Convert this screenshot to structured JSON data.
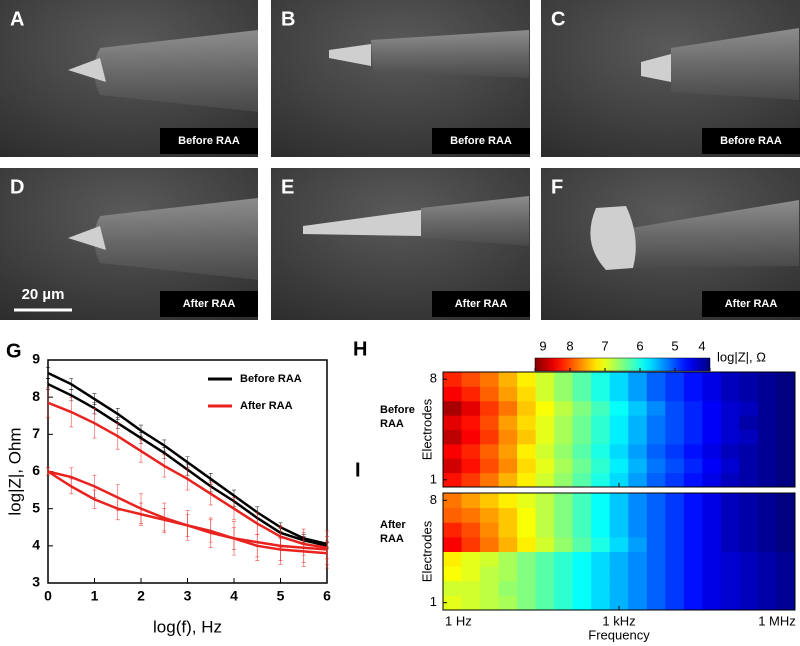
{
  "images": [
    {
      "label": "A",
      "caption": "Before RAA"
    },
    {
      "label": "B",
      "caption": "Before RAA"
    },
    {
      "label": "C",
      "caption": "Before RAA"
    },
    {
      "label": "D",
      "caption": "After RAA"
    },
    {
      "label": "E",
      "caption": "After RAA"
    },
    {
      "label": "F",
      "caption": "After RAA"
    }
  ],
  "scale_bar": "20 µm",
  "chart_data": [
    {
      "type": "line",
      "label": "G",
      "xlabel": "log(f), Hz",
      "ylabel": "log|Z|, Ohm",
      "xlim": [
        0,
        6
      ],
      "ylim": [
        3,
        9
      ],
      "xticks": [
        0,
        1,
        2,
        3,
        4,
        5,
        6
      ],
      "yticks": [
        3,
        4,
        5,
        6,
        7,
        8,
        9
      ],
      "x": [
        0,
        0.5,
        1,
        1.5,
        2,
        2.5,
        3,
        3.5,
        4,
        4.5,
        5,
        5.5,
        6
      ],
      "series": [
        {
          "name": "Before RAA",
          "color": "#000000",
          "curves": [
            {
              "values": [
                8.65,
                8.35,
                7.95,
                7.55,
                7.1,
                6.7,
                6.25,
                5.8,
                5.35,
                4.9,
                4.5,
                4.2,
                4.05
              ],
              "errors": [
                0.15,
                0.15,
                0.15,
                0.15,
                0.15,
                0.15,
                0.15,
                0.15,
                0.15,
                0.15,
                0.12,
                0.1,
                0.08
              ]
            },
            {
              "values": [
                8.35,
                8.05,
                7.7,
                7.3,
                6.9,
                6.5,
                6.05,
                5.6,
                5.2,
                4.75,
                4.35,
                4.15,
                4.0
              ],
              "errors": [
                0.15,
                0.15,
                0.15,
                0.15,
                0.15,
                0.15,
                0.15,
                0.15,
                0.15,
                0.15,
                0.12,
                0.1,
                0.08
              ]
            }
          ]
        },
        {
          "name": "After RAA",
          "color": "#e8231f",
          "curves": [
            {
              "values": [
                7.85,
                7.6,
                7.3,
                6.95,
                6.55,
                6.15,
                5.8,
                5.4,
                5.0,
                4.6,
                4.25,
                4.05,
                3.95
              ],
              "errors": [
                0.4,
                0.4,
                0.4,
                0.35,
                0.3,
                0.3,
                0.3,
                0.3,
                0.3,
                0.3,
                0.3,
                0.3,
                0.3
              ]
            },
            {
              "values": [
                6.0,
                5.85,
                5.6,
                5.3,
                5.0,
                4.75,
                4.55,
                4.35,
                4.2,
                4.1,
                4.0,
                3.95,
                3.9
              ],
              "errors": [
                0.1,
                0.25,
                0.3,
                0.35,
                0.4,
                0.4,
                0.4,
                0.4,
                0.45,
                0.5,
                0.5,
                0.5,
                0.5
              ]
            },
            {
              "values": [
                6.0,
                5.6,
                5.25,
                5.0,
                4.85,
                4.7,
                4.55,
                4.4,
                4.2,
                4.0,
                3.9,
                3.85,
                3.8
              ],
              "errors": [
                0.1,
                0.2,
                0.25,
                0.3,
                0.3,
                0.3,
                0.3,
                0.3,
                0.3,
                0.3,
                0.3,
                0.3,
                0.3
              ]
            }
          ]
        }
      ]
    },
    {
      "type": "heatmap",
      "label": "H",
      "side_label": "Before\nRAA",
      "ylabel": "Electrodes",
      "xlabel": "",
      "colorbar": {
        "clim": [
          4,
          9
        ],
        "ticks": [
          9,
          8,
          7,
          6,
          5,
          4
        ],
        "label": "log|Z|, Ω"
      },
      "xlim": [
        0,
        6
      ],
      "xticks": [
        {
          "value": 0,
          "label": "1 Hz"
        },
        {
          "value": 3,
          "label": "1 kHz"
        },
        {
          "value": 6,
          "label": "1 MHz"
        }
      ],
      "ylim": [
        0.5,
        8.5
      ],
      "yticks": [
        1,
        8
      ],
      "values": [
        [
          8.3,
          8.1,
          7.8,
          7.5,
          7.2,
          6.9,
          6.6,
          6.3,
          6.0,
          5.7,
          5.4,
          5.1,
          4.9,
          4.7,
          4.5,
          4.3,
          4.2,
          4.1,
          4.0
        ],
        [
          8.6,
          8.3,
          8.0,
          7.7,
          7.3,
          7.0,
          6.7,
          6.4,
          6.1,
          5.8,
          5.5,
          5.2,
          5.0,
          4.8,
          4.6,
          4.4,
          4.2,
          4.1,
          4.0
        ],
        [
          8.4,
          8.2,
          7.9,
          7.6,
          7.2,
          6.9,
          6.6,
          6.3,
          6.0,
          5.7,
          5.4,
          5.1,
          4.9,
          4.7,
          4.5,
          4.3,
          4.2,
          4.1,
          4.0
        ],
        [
          8.7,
          8.4,
          8.1,
          7.7,
          7.4,
          7.0,
          6.7,
          6.4,
          6.1,
          5.8,
          5.5,
          5.2,
          5.0,
          4.8,
          4.6,
          4.4,
          4.3,
          4.1,
          4.0
        ],
        [
          8.5,
          8.3,
          8.0,
          7.6,
          7.3,
          7.0,
          6.7,
          6.4,
          6.1,
          5.8,
          5.5,
          5.2,
          5.0,
          4.8,
          4.6,
          4.4,
          4.2,
          4.1,
          4.0
        ],
        [
          8.8,
          8.5,
          8.1,
          7.8,
          7.4,
          7.1,
          6.8,
          6.5,
          6.2,
          5.9,
          5.6,
          5.3,
          5.0,
          4.8,
          4.6,
          4.4,
          4.3,
          4.1,
          4.0
        ],
        [
          8.4,
          8.2,
          7.9,
          7.6,
          7.3,
          6.9,
          6.6,
          6.3,
          6.0,
          5.7,
          5.4,
          5.1,
          4.9,
          4.7,
          4.5,
          4.3,
          4.2,
          4.1,
          4.0
        ],
        [
          8.2,
          8.0,
          7.8,
          7.5,
          7.2,
          6.9,
          6.6,
          6.3,
          6.0,
          5.7,
          5.4,
          5.1,
          4.9,
          4.7,
          4.5,
          4.3,
          4.2,
          4.1,
          4.0
        ]
      ]
    },
    {
      "type": "heatmap",
      "label": "I",
      "side_label": "After\nRAA",
      "ylabel": "Electrodes",
      "xlabel": "Frequency",
      "xlim": [
        0,
        6
      ],
      "xticks": [
        {
          "value": 0,
          "label": "1 Hz"
        },
        {
          "value": 3,
          "label": "1 kHz"
        },
        {
          "value": 6,
          "label": "1 MHz"
        }
      ],
      "ylim": [
        0.5,
        8.5
      ],
      "yticks": [
        1,
        8
      ],
      "values": [
        [
          7.0,
          6.9,
          6.8,
          6.7,
          6.5,
          6.3,
          6.1,
          5.9,
          5.7,
          5.5,
          5.3,
          5.1,
          4.9,
          4.7,
          4.5,
          4.4,
          4.3,
          4.2,
          4.1
        ],
        [
          6.9,
          6.9,
          6.8,
          6.6,
          6.5,
          6.3,
          6.1,
          5.9,
          5.7,
          5.5,
          5.3,
          5.1,
          4.9,
          4.7,
          4.5,
          4.4,
          4.3,
          4.2,
          4.1
        ],
        [
          7.1,
          7.0,
          6.8,
          6.7,
          6.5,
          6.3,
          6.1,
          5.9,
          5.7,
          5.5,
          5.3,
          5.1,
          4.9,
          4.7,
          4.5,
          4.4,
          4.3,
          4.2,
          4.1
        ],
        [
          7.2,
          7.0,
          6.9,
          6.7,
          6.5,
          6.3,
          6.1,
          5.9,
          5.7,
          5.5,
          5.3,
          5.1,
          4.9,
          4.7,
          4.5,
          4.4,
          4.3,
          4.2,
          4.1
        ],
        [
          8.4,
          8.1,
          7.8,
          7.5,
          7.2,
          6.9,
          6.6,
          6.3,
          6.0,
          5.7,
          5.4,
          5.1,
          4.9,
          4.7,
          4.5,
          4.3,
          4.2,
          4.1,
          4.0
        ],
        [
          8.2,
          8.0,
          7.7,
          7.4,
          7.1,
          6.8,
          6.5,
          6.2,
          5.9,
          5.6,
          5.3,
          5.1,
          4.9,
          4.7,
          4.5,
          4.3,
          4.2,
          4.1,
          4.0
        ],
        [
          7.9,
          7.8,
          7.6,
          7.4,
          7.1,
          6.8,
          6.5,
          6.2,
          5.9,
          5.6,
          5.3,
          5.1,
          4.9,
          4.7,
          4.5,
          4.3,
          4.2,
          4.1,
          4.0
        ],
        [
          7.8,
          7.6,
          7.4,
          7.2,
          7.0,
          6.8,
          6.5,
          6.2,
          5.9,
          5.6,
          5.3,
          5.1,
          4.9,
          4.7,
          4.5,
          4.3,
          4.2,
          4.1,
          4.0
        ]
      ]
    }
  ]
}
